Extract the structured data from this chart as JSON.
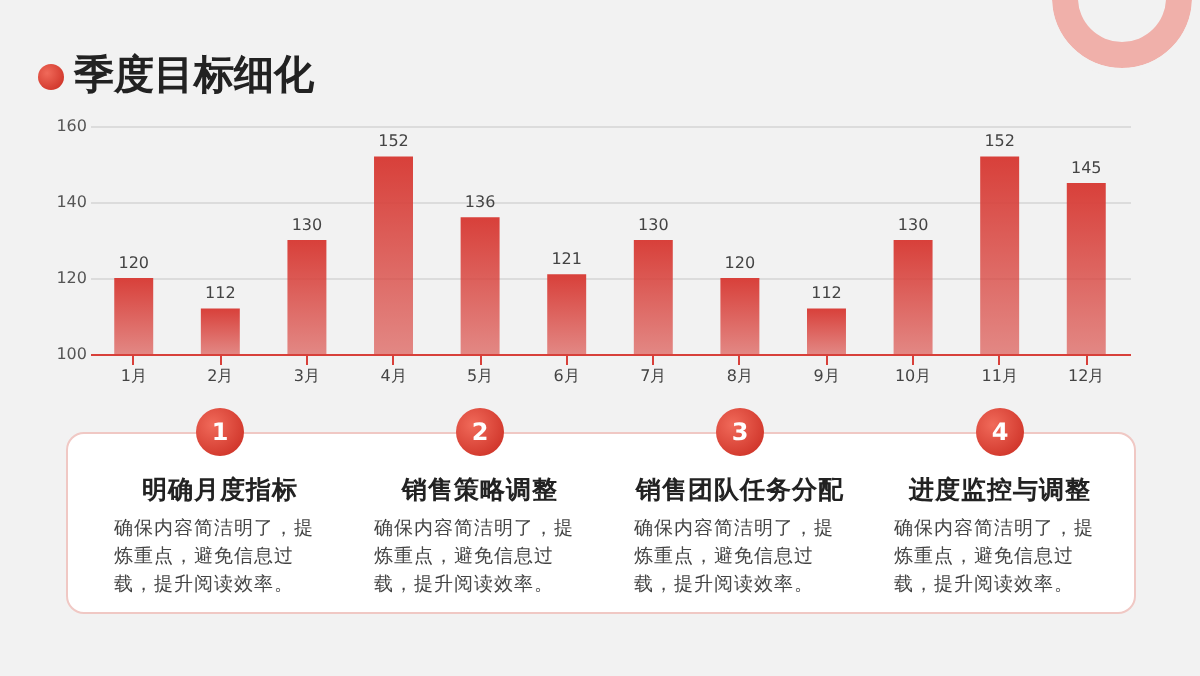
{
  "chart_data": {
    "type": "bar",
    "title": "季度目标细化",
    "categories": [
      "1月",
      "2月",
      "3月",
      "4月",
      "5月",
      "6月",
      "7月",
      "8月",
      "9月",
      "10月",
      "11月",
      "12月"
    ],
    "values": [
      120,
      112,
      130,
      152,
      136,
      121,
      130,
      120,
      112,
      130,
      152,
      145
    ],
    "color": "#d8403a",
    "ylim": [
      100,
      160
    ],
    "yticks": [
      100,
      120,
      140,
      160
    ],
    "grid": "y",
    "data_labels": true,
    "annotations": [
      "1",
      "明确月度指标",
      "确保内容简洁明了，提炼重点，避免信息过载，提升阅读效率。",
      "2",
      "销售策略调整",
      "确保内容简洁明了，提炼重点，避免信息过载，提升阅读效率。",
      "3",
      "销售团队任务分配",
      "确保内容简洁明了，提炼重点，避免信息过载，提升阅读效率。",
      "4",
      "进度监控与调整",
      "确保内容简洁明了，提炼重点，避免信息过载，提升阅读效率。"
    ]
  }
}
